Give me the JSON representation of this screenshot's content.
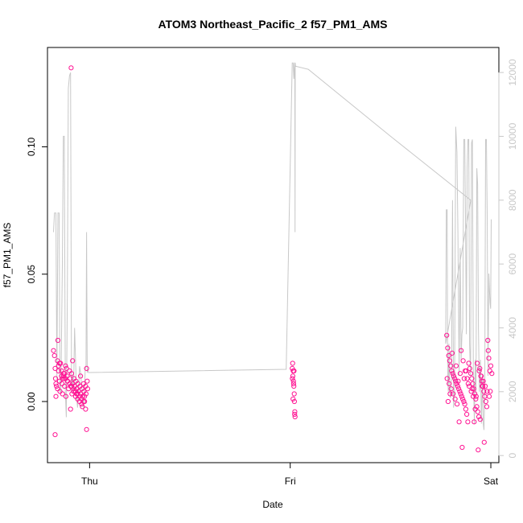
{
  "chart_data": {
    "type": "scatter",
    "title": "ATOM3 Northeast_Pacific_2 f57_PM1_AMS",
    "xlabel": "Date",
    "ylabel": "f57_PM1_AMS",
    "x_unit": "days since Thu 00:00",
    "xlim": [
      -0.21,
      2.04
    ],
    "ylim": [
      -0.024,
      0.139
    ],
    "x_ticks": [
      {
        "value": 0,
        "label": "Thu"
      },
      {
        "value": 1,
        "label": "Fri"
      },
      {
        "value": 2,
        "label": "Sat"
      }
    ],
    "y_ticks": [
      {
        "value": 0.0,
        "label": "0.00"
      },
      {
        "value": 0.05,
        "label": "0.05"
      },
      {
        "value": 0.1,
        "label": "0.10"
      }
    ],
    "y2_ticks": [
      {
        "value": 0,
        "label": "0"
      },
      {
        "value": 2000,
        "label": "2000"
      },
      {
        "value": 4000,
        "label": "4000"
      },
      {
        "value": 6000,
        "label": "6000"
      },
      {
        "value": 8000,
        "label": "8000"
      },
      {
        "value": 10000,
        "label": "10000"
      },
      {
        "value": 12000,
        "label": "12000"
      }
    ],
    "y2lim": [
      -223,
      12784
    ],
    "grid": false,
    "legend": "none",
    "colors": {
      "points": "#ff1493",
      "secondary_line": "#c8c8c8",
      "axis": "#000000",
      "secondary_axis": "#c8c8c8"
    },
    "series": [
      {
        "kind": "points",
        "x": [
          -0.18,
          -0.175,
          -0.172,
          -0.17,
          -0.165,
          -0.16,
          -0.158,
          -0.155,
          -0.15,
          -0.148,
          -0.145,
          -0.14,
          -0.138,
          -0.135,
          -0.13,
          -0.128,
          -0.125,
          -0.12,
          -0.118,
          -0.115,
          -0.112,
          -0.11,
          -0.105,
          -0.1,
          -0.098,
          -0.095,
          -0.09,
          -0.088,
          -0.085,
          -0.08,
          -0.078,
          -0.075,
          -0.07,
          -0.068,
          -0.065,
          -0.06,
          -0.058,
          -0.055,
          -0.05,
          -0.048,
          -0.045,
          -0.04,
          -0.038,
          -0.035,
          -0.03,
          -0.028,
          -0.025,
          -0.02,
          -0.018,
          -0.015,
          -0.012,
          -0.01,
          -0.172,
          -0.16,
          -0.15,
          -0.14,
          -0.13,
          -0.12,
          -0.11,
          -0.1,
          -0.09,
          -0.08,
          -0.07,
          -0.06,
          -0.05,
          -0.04,
          -0.03,
          -0.02,
          -0.155,
          -0.125,
          -0.085,
          -0.045,
          -0.015,
          -0.168,
          -0.135,
          -0.095,
          -0.065,
          -0.025,
          -0.168,
          -0.092,
          -0.036,
          1.01,
          1.012,
          1.013,
          1.015,
          1.016,
          1.017,
          1.018,
          1.02,
          1.021,
          1.022,
          1.024,
          1.011,
          1.014,
          1.019,
          1.023,
          1.78,
          1.785,
          1.79,
          1.795,
          1.8,
          1.805,
          1.81,
          1.815,
          1.82,
          1.825,
          1.83,
          1.835,
          1.84,
          1.845,
          1.85,
          1.855,
          1.86,
          1.865,
          1.87,
          1.875,
          1.88,
          1.885,
          1.89,
          1.895,
          1.9,
          1.905,
          1.91,
          1.915,
          1.92,
          1.925,
          1.93,
          1.935,
          1.94,
          1.945,
          1.95,
          1.955,
          1.96,
          1.965,
          1.97,
          1.975,
          1.98,
          1.985,
          1.99,
          1.995,
          2.0,
          2.005,
          1.782,
          1.792,
          1.802,
          1.812,
          1.822,
          1.832,
          1.842,
          1.852,
          1.862,
          1.872,
          1.882,
          1.892,
          1.902,
          1.912,
          1.922,
          1.932,
          1.942,
          1.952,
          1.962,
          1.972,
          1.982,
          1.992,
          1.787,
          1.807,
          1.827,
          1.847,
          1.867,
          1.887,
          1.907,
          1.927,
          1.947,
          1.967,
          1.987,
          1.797,
          1.837,
          1.877,
          1.917,
          1.957,
          1.997,
          1.857,
          1.937
        ],
        "y": [
          0.02,
          0.018,
          0.013,
          0.009,
          0.006,
          0.005,
          0.024,
          0.012,
          0.008,
          0.004,
          0.015,
          0.01,
          0.007,
          0.003,
          0.011,
          0.009,
          0.006,
          0.014,
          0.002,
          0.013,
          0.01,
          0.008,
          0.005,
          0.012,
          0.009,
          0.006,
          0.011,
          0.003,
          0.007,
          0.004,
          0.009,
          0.006,
          0.002,
          0.008,
          0.005,
          0.001,
          0.007,
          0.004,
          0.0,
          0.006,
          0.003,
          -0.001,
          0.005,
          0.002,
          0.007,
          0.004,
          0.0,
          0.006,
          0.003,
          0.013,
          0.008,
          0.005,
          -0.013,
          0.016,
          0.015,
          0.012,
          0.01,
          0.009,
          0.008,
          0.007,
          0.006,
          0.005,
          0.004,
          0.003,
          0.002,
          0.001,
          0.0,
          -0.003,
          0.014,
          0.011,
          0.016,
          0.01,
          -0.011,
          0.007,
          0.009,
          -0.003,
          0.003,
          0.002,
          0.002,
          0.131,
          -0.002,
          0.013,
          0.015,
          0.01,
          0.012,
          0.008,
          0.007,
          0.006,
          0.003,
          0.0,
          -0.005,
          -0.006,
          0.009,
          0.001,
          0.012,
          -0.004,
          0.026,
          0.021,
          0.018,
          0.016,
          0.014,
          0.012,
          0.011,
          0.01,
          0.009,
          0.008,
          0.007,
          0.006,
          0.005,
          0.004,
          0.003,
          0.002,
          0.001,
          0.0,
          -0.001,
          -0.003,
          -0.005,
          -0.008,
          0.015,
          0.013,
          0.011,
          0.009,
          0.007,
          0.005,
          0.003,
          0.001,
          -0.002,
          -0.004,
          -0.006,
          0.013,
          0.01,
          0.008,
          0.006,
          0.004,
          0.002,
          0.0,
          -0.002,
          0.024,
          0.017,
          0.012,
          0.014,
          0.011,
          0.009,
          0.007,
          0.005,
          0.003,
          0.001,
          -0.001,
          -0.008,
          0.02,
          0.016,
          0.012,
          0.009,
          0.006,
          0.004,
          0.002,
          -0.003,
          0.015,
          0.012,
          0.01,
          0.008,
          0.006,
          0.004,
          0.002,
          0.0,
          0.019,
          0.014,
          0.011,
          0.009,
          0.007,
          0.005,
          0.002,
          -0.007,
          -0.016,
          0.02,
          0.003,
          0.008,
          0.012,
          -0.008,
          0.006,
          0.004,
          -0.018,
          -0.019
        ]
      },
      {
        "kind": "line",
        "axis": "right",
        "x": [
          -0.18,
          -0.175,
          -0.168,
          -0.163,
          -0.158,
          -0.152,
          -0.148,
          -0.143,
          -0.136,
          -0.131,
          -0.126,
          -0.121,
          -0.116,
          -0.111,
          -0.106,
          -0.1,
          -0.095,
          -0.09,
          -0.085,
          -0.08,
          -0.075,
          -0.07,
          -0.065,
          -0.06,
          -0.055,
          -0.05,
          -0.045,
          -0.04,
          -0.035,
          -0.03,
          -0.026,
          -0.022,
          -0.018,
          -0.015,
          -0.012,
          -0.009,
          -0.006,
          0.98,
          1.01,
          1.015,
          1.018,
          1.021,
          1.022,
          1.023,
          1.024,
          1.025,
          1.026,
          1.09,
          1.5,
          1.9,
          1.775,
          1.778,
          1.782,
          1.785,
          1.788,
          1.791,
          1.795,
          1.799,
          1.804,
          1.809,
          1.814,
          1.819,
          1.825,
          1.831,
          1.836,
          1.842,
          1.847,
          1.852,
          1.856,
          1.86,
          1.865,
          1.87,
          1.874,
          1.878,
          1.882,
          1.886,
          1.89,
          1.894,
          1.899,
          1.904,
          1.908,
          1.913,
          1.918,
          1.922,
          1.926,
          1.93,
          1.934,
          1.938,
          1.943,
          1.948,
          1.953,
          1.958,
          1.962,
          1.966,
          1.97,
          1.974,
          1.978,
          1.982,
          1.986,
          1.99,
          1.993,
          1.996,
          1.999,
          2.002
        ],
        "y": [
          7000,
          7600,
          7600,
          2400,
          7600,
          7600,
          2000,
          2000,
          6000,
          10000,
          10000,
          2000,
          1200,
          5000,
          11500,
          11900,
          12000,
          2000,
          2500,
          2000,
          4000,
          3000,
          1800,
          1500,
          2000,
          2800,
          2600,
          2200,
          1800,
          1500,
          2000,
          2700,
          2800,
          7000,
          2600,
          2700,
          2600,
          2700,
          12300,
          12300,
          11800,
          12200,
          12300,
          12300,
          7000,
          12300,
          12200,
          12100,
          10000,
          8000,
          3500,
          7700,
          7700,
          2500,
          2000,
          3500,
          2000,
          1800,
          2600,
          8000,
          1500,
          2000,
          10300,
          9500,
          7000,
          2500,
          6500,
          3000,
          3800,
          4000,
          9900,
          9900,
          7200,
          3800,
          9000,
          9900,
          9900,
          3500,
          2500,
          9800,
          9900,
          2500,
          1000,
          3000,
          2000,
          9000,
          8500,
          4000,
          2000,
          3000,
          1000,
          2500,
          1000,
          800,
          2000,
          9900,
          9900,
          7500,
          2500,
          5700,
          5200,
          4800,
          4600,
          7400
        ]
      }
    ]
  }
}
